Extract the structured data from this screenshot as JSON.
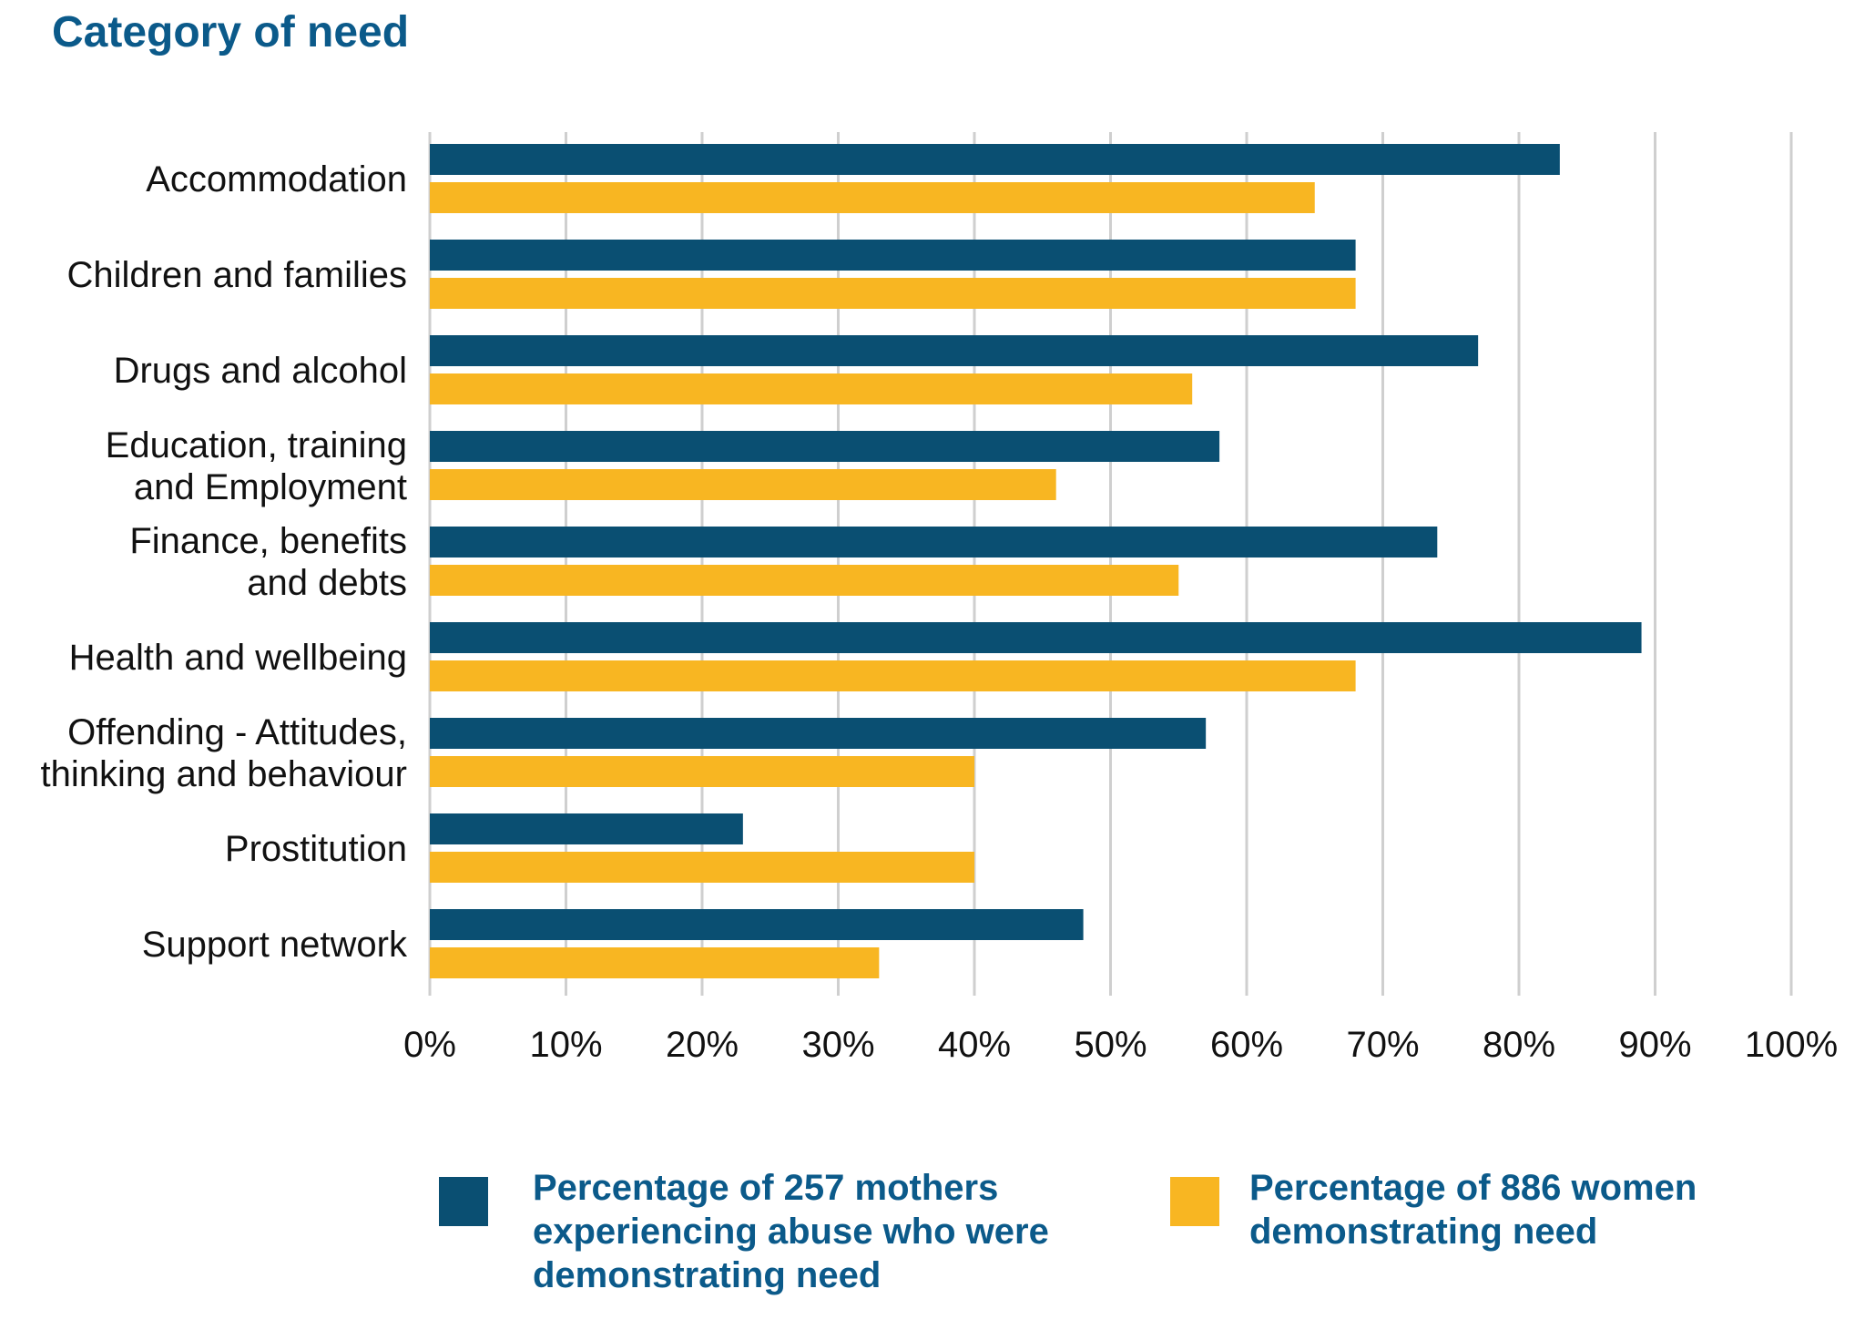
{
  "chart_data": {
    "type": "bar",
    "orientation": "horizontal",
    "title": "Category of need",
    "categories": [
      "Accommodation",
      "Children and families",
      "Drugs and alcohol",
      "Education, training and Employment",
      "Finance, benefits and debts",
      "Health and wellbeing",
      "Offending - Attitudes, thinking and behaviour",
      "Prostitution",
      "Support network"
    ],
    "category_lines": [
      [
        "Accommodation"
      ],
      [
        "Children and families"
      ],
      [
        "Drugs and alcohol"
      ],
      [
        "Education, training",
        "and Employment"
      ],
      [
        "Finance, benefits",
        "and debts"
      ],
      [
        "Health and wellbeing"
      ],
      [
        "Offending - Attitudes,",
        "thinking and behaviour"
      ],
      [
        "Prostitution"
      ],
      [
        "Support network"
      ]
    ],
    "series": [
      {
        "name": "Percentage of 257 mothers experiencing abuse who were demonstrating need",
        "color": "#0a4f72",
        "values": [
          83,
          68,
          77,
          58,
          74,
          89,
          57,
          23,
          48
        ]
      },
      {
        "name": "Percentage of 886 women demonstrating need",
        "color": "#f8b622",
        "values": [
          65,
          68,
          56,
          46,
          55,
          68,
          40,
          40,
          33
        ]
      }
    ],
    "xlim": [
      0,
      100
    ],
    "xticks": [
      "0%",
      "10%",
      "20%",
      "30%",
      "40%",
      "50%",
      "60%",
      "70%",
      "80%",
      "90%",
      "100%"
    ],
    "grid": true,
    "legend_position": "bottom"
  },
  "legend": {
    "items": [
      {
        "lines": [
          "Percentage of 257 mothers",
          "experiencing abuse who were",
          "demonstrating need"
        ],
        "color": "#0a4f72"
      },
      {
        "lines": [
          "Percentage of 886 women",
          "demonstrating need"
        ],
        "color": "#f8b622"
      }
    ]
  }
}
